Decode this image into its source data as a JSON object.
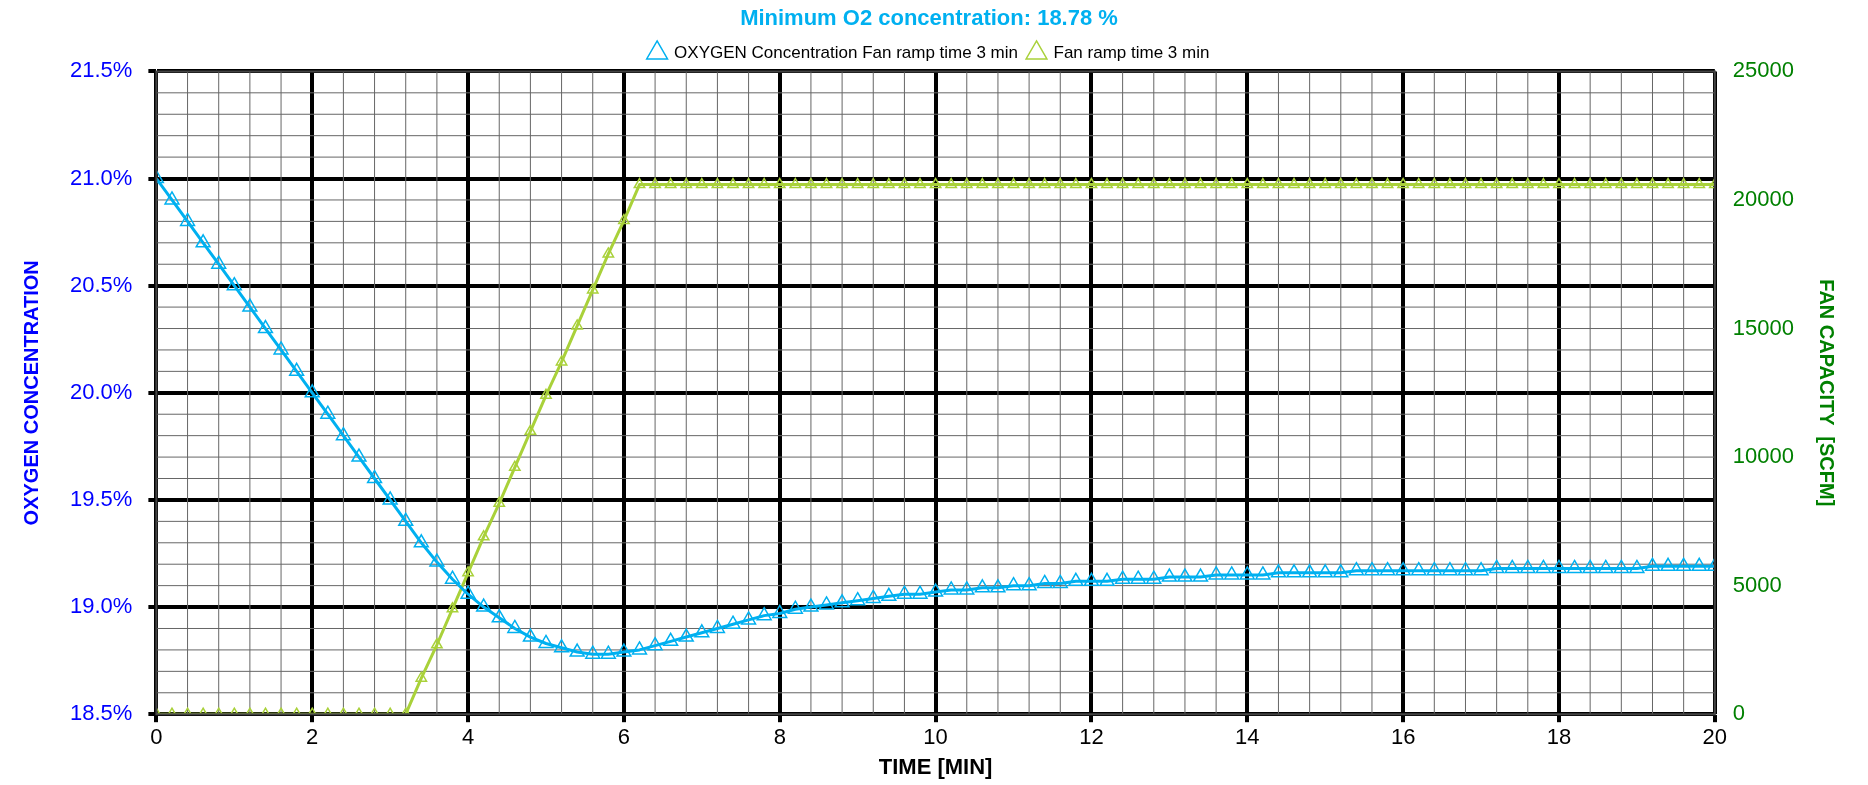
{
  "chart_data": {
    "type": "line",
    "title": "Minimum O2 concentration: 18.78 %",
    "xlabel": "TIME [MIN]",
    "ylabel": "OXYGEN CONCENTRATION",
    "y2label": "FAN CAPACITY  [SCFM]",
    "x": [
      0,
      0.2,
      0.4,
      0.6,
      0.8,
      1,
      1.2,
      1.4,
      1.6,
      1.8,
      2,
      2.2,
      2.4,
      2.6,
      2.8,
      3,
      3.2,
      3.4,
      3.6,
      3.8,
      4,
      4.2,
      4.4,
      4.6,
      4.8,
      5,
      5.2,
      5.4,
      5.6,
      5.8,
      6,
      6.2,
      6.4,
      6.6,
      6.8,
      7,
      7.2,
      7.4,
      7.6,
      7.8,
      8,
      8.2,
      8.4,
      8.6,
      8.8,
      9,
      9.2,
      9.4,
      9.6,
      9.8,
      10,
      10.2,
      10.4,
      10.6,
      10.8,
      11,
      11.2,
      11.4,
      11.6,
      11.8,
      12,
      12.2,
      12.4,
      12.6,
      12.8,
      13,
      13.2,
      13.4,
      13.6,
      13.8,
      14,
      14.2,
      14.4,
      14.6,
      14.8,
      15,
      15.2,
      15.4,
      15.6,
      15.8,
      16,
      16.2,
      16.4,
      16.6,
      16.8,
      17,
      17.2,
      17.4,
      17.6,
      17.8,
      18,
      18.2,
      18.4,
      18.6,
      18.8,
      19,
      19.2,
      19.4,
      19.6,
      19.8,
      20
    ],
    "series": [
      {
        "name": "OXYGEN Concentration Fan ramp time 3 min",
        "color": "#00b0f0",
        "values": [
          21.0,
          20.9,
          20.8,
          20.7,
          20.6,
          20.5,
          20.4,
          20.3,
          20.2,
          20.1,
          20.0,
          19.9,
          19.8,
          19.7,
          19.6,
          19.5,
          19.4,
          19.3,
          19.21,
          19.13,
          19.06,
          19.0,
          18.95,
          18.9,
          18.86,
          18.83,
          18.81,
          18.79,
          18.78,
          18.78,
          18.79,
          18.8,
          18.82,
          18.84,
          18.86,
          18.88,
          18.9,
          18.92,
          18.94,
          18.96,
          18.97,
          18.99,
          19.0,
          19.01,
          19.02,
          19.03,
          19.04,
          19.05,
          19.06,
          19.06,
          19.07,
          19.08,
          19.08,
          19.09,
          19.09,
          19.1,
          19.1,
          19.11,
          19.11,
          19.12,
          19.12,
          19.12,
          19.13,
          19.13,
          19.13,
          19.14,
          19.14,
          19.14,
          19.15,
          19.15,
          19.15,
          19.15,
          19.16,
          19.16,
          19.16,
          19.16,
          19.16,
          19.17,
          19.17,
          19.17,
          19.17,
          19.17,
          19.17,
          19.17,
          19.17,
          19.17,
          19.18,
          19.18,
          19.18,
          19.18,
          19.18,
          19.18,
          19.18,
          19.18,
          19.18,
          19.18,
          19.19,
          19.19,
          19.19,
          19.19,
          19.19
        ]
      },
      {
        "name": "Fan ramp time 3 min",
        "color": "#a9d13a",
        "axis": "y2",
        "values": [
          0,
          0,
          0,
          0,
          0,
          0,
          0,
          0,
          0,
          0,
          0,
          0,
          0,
          0,
          0,
          0,
          0,
          1400,
          2700,
          4100,
          5500,
          6900,
          8200,
          9600,
          11000,
          12400,
          13700,
          15100,
          16500,
          17900,
          19200,
          20600,
          20600,
          20600,
          20600,
          20600,
          20600,
          20600,
          20600,
          20600,
          20600,
          20600,
          20600,
          20600,
          20600,
          20600,
          20600,
          20600,
          20600,
          20600,
          20600,
          20600,
          20600,
          20600,
          20600,
          20600,
          20600,
          20600,
          20600,
          20600,
          20600,
          20600,
          20600,
          20600,
          20600,
          20600,
          20600,
          20600,
          20600,
          20600,
          20600,
          20600,
          20600,
          20600,
          20600,
          20600,
          20600,
          20600,
          20600,
          20600,
          20600,
          20600,
          20600,
          20600,
          20600,
          20600,
          20600,
          20600,
          20600,
          20600,
          20600,
          20600,
          20600,
          20600,
          20600,
          20600,
          20600,
          20600,
          20600,
          20600,
          20600
        ]
      }
    ],
    "xlim": [
      0,
      20
    ],
    "xticks": [
      0,
      2,
      4,
      6,
      8,
      10,
      12,
      14,
      16,
      18,
      20
    ],
    "ylim": [
      18.5,
      21.5
    ],
    "yticks": [
      {
        "value": 18.5,
        "label": "18.5%"
      },
      {
        "value": 19.0,
        "label": "19.0%"
      },
      {
        "value": 19.5,
        "label": "19.5%"
      },
      {
        "value": 20.0,
        "label": "20.0%"
      },
      {
        "value": 20.5,
        "label": "20.5%"
      },
      {
        "value": 21.0,
        "label": "21.0%"
      },
      {
        "value": 21.5,
        "label": "21.5%"
      }
    ],
    "y2lim": [
      0,
      25000
    ],
    "y2ticks": [
      0,
      5000,
      10000,
      15000,
      20000,
      25000
    ],
    "grid": true,
    "legend": "top",
    "marker": "triangle",
    "line_style": "solid"
  }
}
